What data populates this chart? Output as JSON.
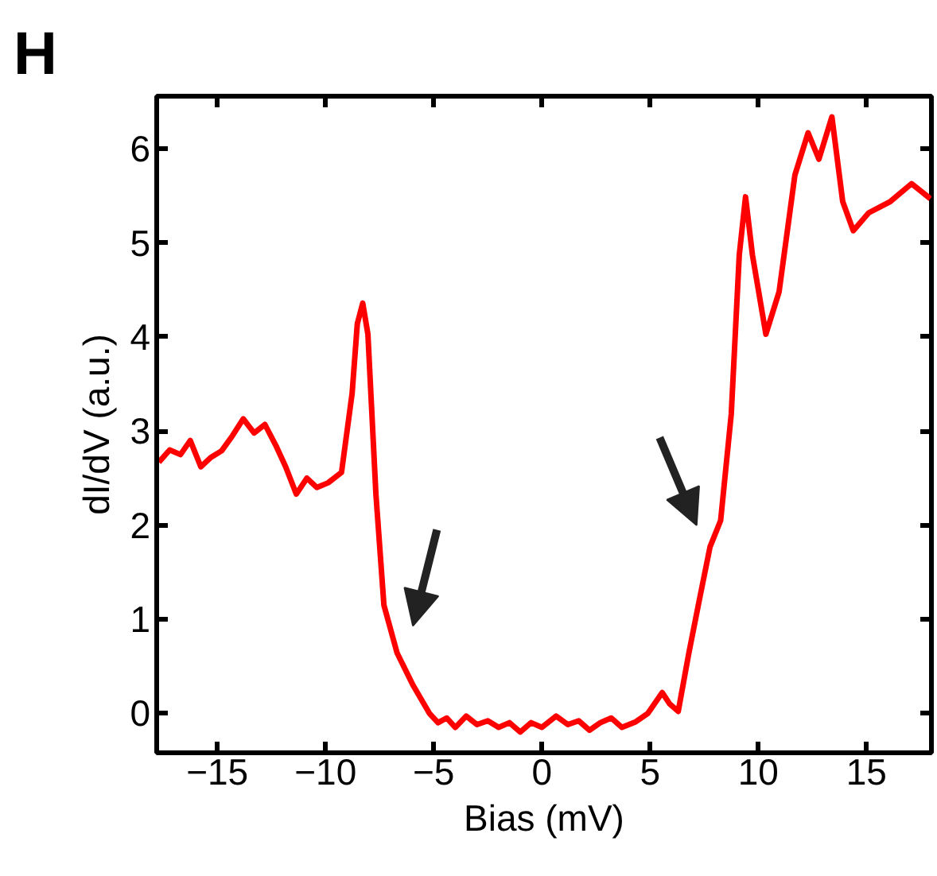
{
  "chart_data": {
    "type": "line",
    "title": "H",
    "xlabel": "Bias (mV)",
    "ylabel": "dI/dV (a.u.)",
    "xlim": [
      -17.8,
      18
    ],
    "ylim": [
      -0.42,
      6.56
    ],
    "xticks": [
      {
        "value": -15,
        "label": "−15"
      },
      {
        "value": -10,
        "label": "−10"
      },
      {
        "value": -5,
        "label": "−5"
      },
      0,
      5,
      10,
      15
    ],
    "yticks": [
      0,
      1,
      2,
      3,
      4,
      5,
      6
    ],
    "grid": false,
    "marker": "none",
    "line_style": "solid",
    "series": [
      {
        "color": "#ff0000",
        "x": [
          -17.7,
          -17.2,
          -16.7,
          -16.25,
          -15.76,
          -15.3,
          -14.8,
          -14.3,
          -13.8,
          -13.3,
          -12.8,
          -12.3,
          -11.84,
          -11.35,
          -10.86,
          -10.4,
          -9.88,
          -9.26,
          -8.77,
          -8.53,
          -8.28,
          -8.04,
          -7.67,
          -7.3,
          -6.69,
          -5.96,
          -5.2,
          -4.8,
          -4.4,
          -4.0,
          -3.5,
          -3.0,
          -2.5,
          -2.0,
          -1.5,
          -1.0,
          -0.5,
          0.0,
          0.66,
          1.2,
          1.7,
          2.2,
          2.7,
          3.2,
          3.7,
          4.34,
          4.9,
          5.56,
          5.9,
          6.3,
          6.79,
          7.28,
          7.77,
          8.26,
          8.75,
          9.12,
          9.41,
          9.73,
          10.35,
          10.96,
          11.69,
          12.3,
          12.8,
          13.4,
          13.9,
          14.39,
          15.1,
          16.1,
          17.08,
          17.95
        ],
        "values": [
          2.67,
          2.8,
          2.75,
          2.9,
          2.62,
          2.72,
          2.79,
          2.95,
          3.13,
          2.98,
          3.07,
          2.85,
          2.62,
          2.33,
          2.5,
          2.4,
          2.45,
          2.56,
          3.4,
          4.14,
          4.36,
          4.03,
          2.33,
          1.15,
          0.64,
          0.3,
          0.0,
          -0.1,
          -0.05,
          -0.15,
          -0.03,
          -0.12,
          -0.08,
          -0.15,
          -0.1,
          -0.2,
          -0.1,
          -0.15,
          -0.03,
          -0.12,
          -0.08,
          -0.18,
          -0.1,
          -0.05,
          -0.15,
          -0.09,
          0.0,
          0.22,
          0.1,
          0.02,
          0.64,
          1.21,
          1.77,
          2.05,
          3.18,
          4.87,
          5.49,
          4.87,
          4.03,
          4.48,
          5.72,
          6.17,
          5.89,
          6.34,
          5.44,
          5.13,
          5.32,
          5.44,
          5.63,
          5.47
        ]
      }
    ]
  }
}
